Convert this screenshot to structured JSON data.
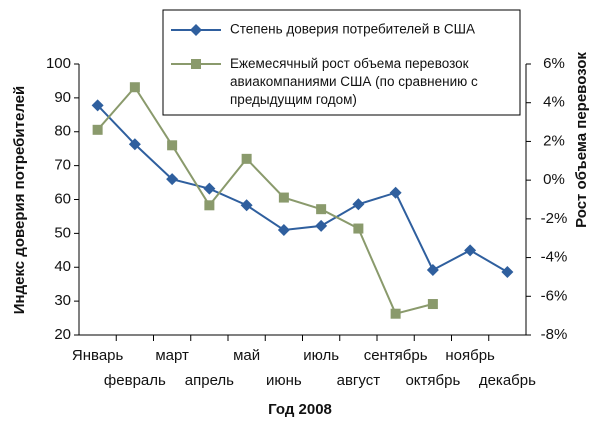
{
  "chart_data": {
    "type": "line",
    "xlabel": "Год 2008",
    "ylabel": "Индекс доверия потребителей",
    "y2label": "Рост объема перевозок",
    "categories": [
      "Январь",
      "февраль",
      "март",
      "апрель",
      "май",
      "июнь",
      "июль",
      "август",
      "сентябрь",
      "октябрь",
      "ноябрь",
      "декабрь"
    ],
    "series": [
      {
        "name": "Степень доверия потребителей в США",
        "color": "#2f5f9e",
        "values": [
          87.8,
          76.3,
          66,
          63.2,
          58.3,
          51,
          52.2,
          58.6,
          62,
          39.2,
          45,
          38.6
        ]
      },
      {
        "name": "Ежемесячный рост объема перевозок авиакомпаниями США (по сравнению с предыдущим годом)",
        "color": "#8a9a6c",
        "axis": "y2",
        "values": [
          2.6,
          4.8,
          1.8,
          -1.3,
          1.1,
          -0.9,
          -1.5,
          -2.5,
          -6.9,
          -6.4,
          null,
          null
        ]
      }
    ],
    "ylim": [
      20,
      100
    ],
    "yticks": [
      20,
      30,
      40,
      50,
      60,
      70,
      80,
      90,
      100
    ],
    "y2lim": [
      -8,
      6
    ],
    "y2ticks": [
      {
        "value": -8,
        "label": "-8%"
      },
      {
        "value": -6,
        "label": "-6%"
      },
      {
        "value": -4,
        "label": "-4%"
      },
      {
        "value": -2,
        "label": "-2%"
      },
      {
        "value": 0,
        "label": "0%"
      },
      {
        "value": 2,
        "label": "2%"
      },
      {
        "value": 4,
        "label": "4%"
      },
      {
        "value": 6,
        "label": "6%"
      }
    ]
  }
}
